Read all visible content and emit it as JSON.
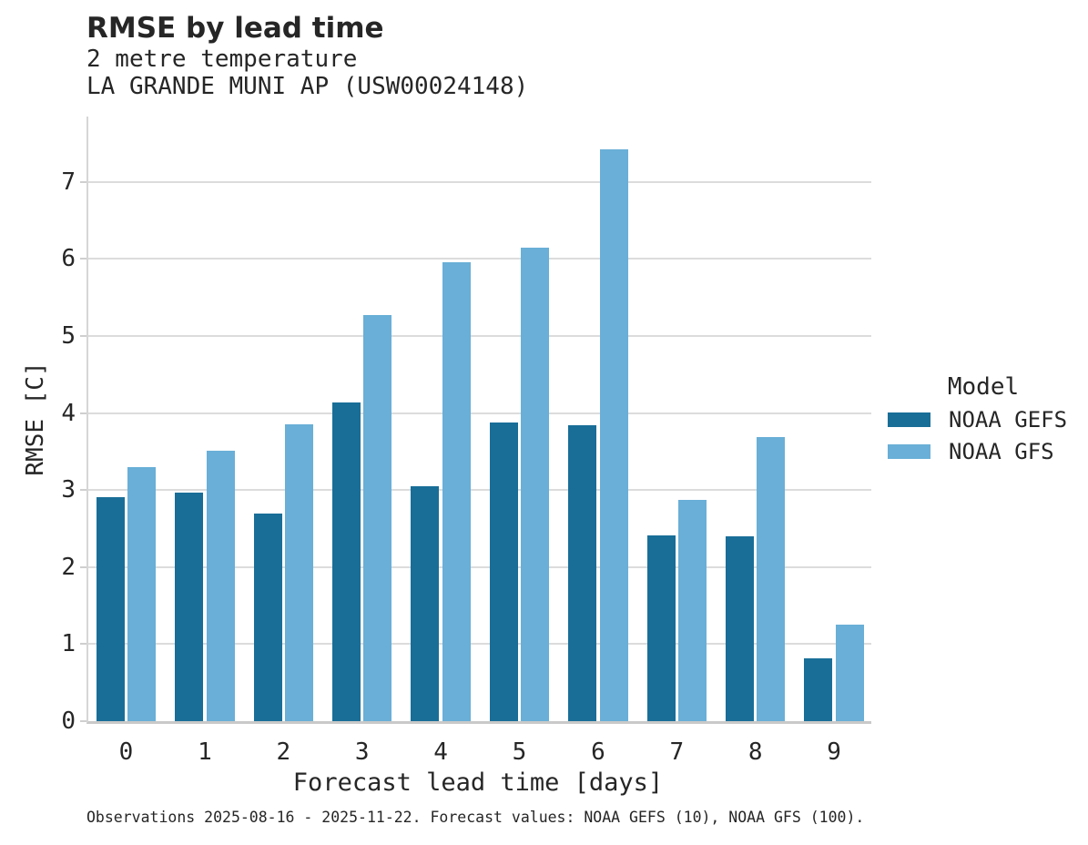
{
  "header": {
    "title": "RMSE by lead time",
    "subtitle_line1": "2 metre temperature",
    "subtitle_line2": "LA GRANDE MUNI AP (USW00024148)"
  },
  "chart_data": {
    "type": "bar",
    "title": "RMSE by lead time",
    "subtitle": [
      "2 metre temperature",
      "LA GRANDE MUNI AP (USW00024148)"
    ],
    "categories": [
      "0",
      "1",
      "2",
      "3",
      "4",
      "5",
      "6",
      "7",
      "8",
      "9"
    ],
    "series": [
      {
        "name": "NOAA GEFS",
        "color": "#196E98",
        "values": [
          2.91,
          2.97,
          2.7,
          4.14,
          3.05,
          3.88,
          3.84,
          2.41,
          2.4,
          0.82
        ]
      },
      {
        "name": "NOAA GFS",
        "color": "#69AFD7",
        "values": [
          3.3,
          3.51,
          3.85,
          5.27,
          5.96,
          6.15,
          7.43,
          2.87,
          3.69,
          1.25
        ]
      }
    ],
    "xlabel": "Forecast lead time [days]",
    "ylabel": "RMSE [C]",
    "ylim": [
      0,
      7.85
    ],
    "yticks": [
      0,
      1,
      2,
      3,
      4,
      5,
      6,
      7
    ],
    "grid": "horizontal-only",
    "legend_position": "right"
  },
  "legend": {
    "title": "Model",
    "items": [
      {
        "label": "NOAA GEFS",
        "color": "#196E98"
      },
      {
        "label": "NOAA GFS",
        "color": "#69AFD7"
      }
    ]
  },
  "footer": {
    "caption": "Observations 2025-08-16 - 2025-11-22. Forecast values: NOAA GEFS (10), NOAA GFS (100)."
  },
  "colors": {
    "gridline": "#DCDCDC",
    "axis_spine": "#C9C9C9",
    "text": "#262626"
  }
}
